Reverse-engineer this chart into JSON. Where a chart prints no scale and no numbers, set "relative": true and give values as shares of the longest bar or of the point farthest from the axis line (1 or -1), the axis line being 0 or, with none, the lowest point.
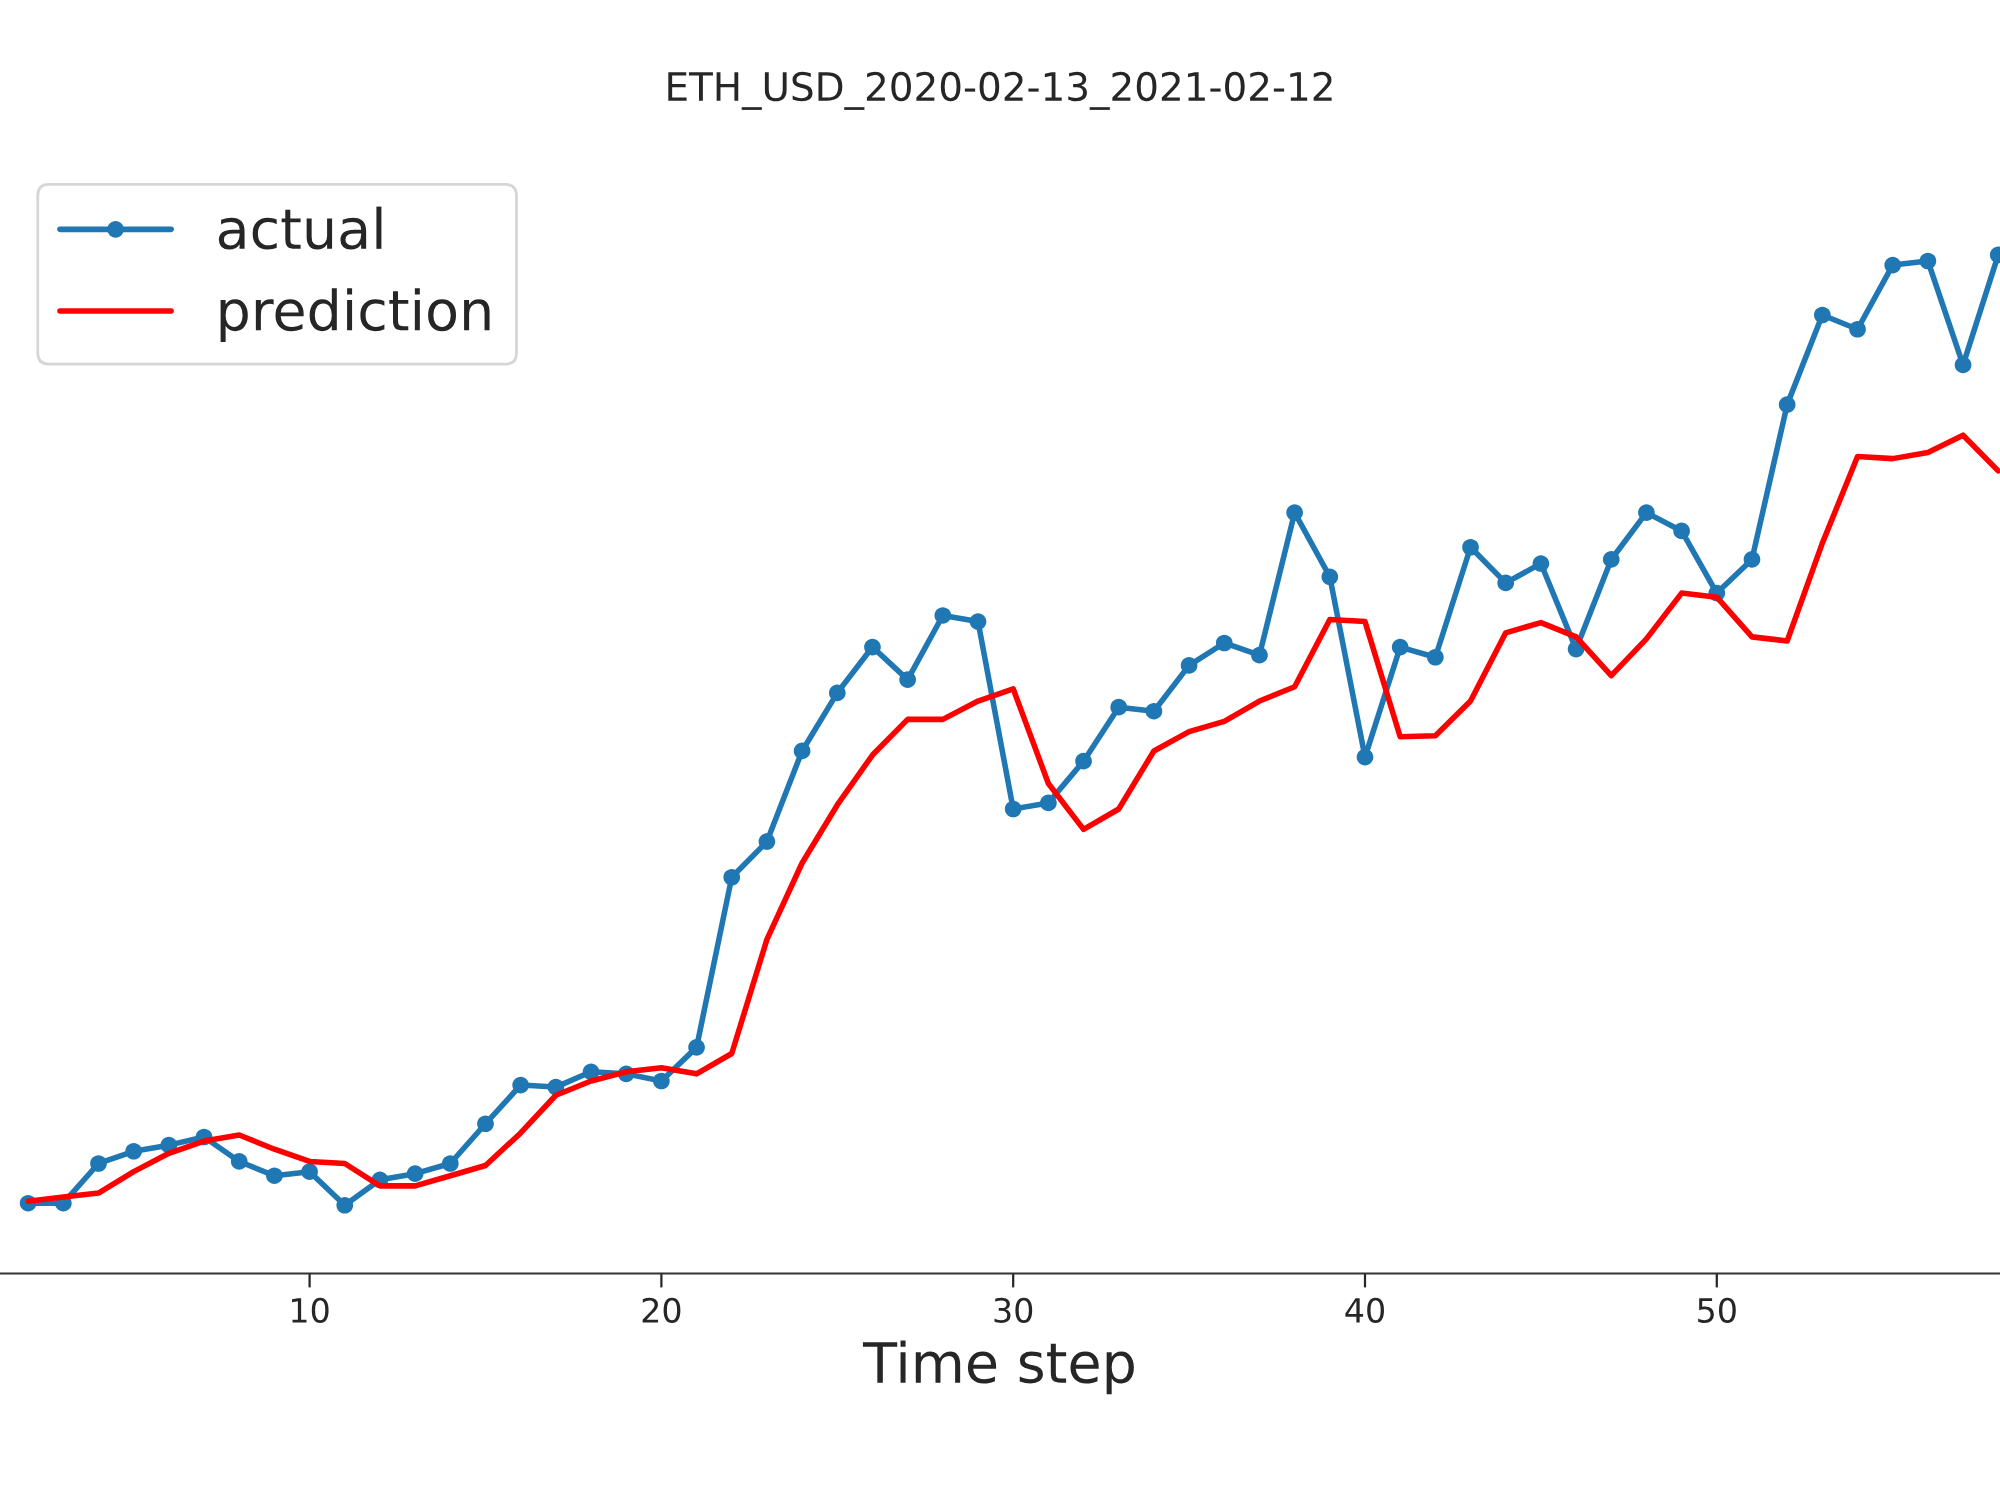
{
  "chart_data": {
    "type": "line",
    "title": "ETH_USD_2020-02-13_2021-02-12",
    "xlabel": "Time step",
    "relative": true,
    "tick_labels": "x",
    "legend": "top left",
    "grid": false,
    "xlim": [
      1.2,
      58.05
    ],
    "xticks": [
      10,
      20,
      30,
      40,
      50
    ],
    "x": [
      2,
      3,
      4,
      5,
      6,
      7,
      8,
      9,
      10,
      11,
      12,
      13,
      14,
      15,
      16,
      17,
      18,
      19,
      20,
      21,
      22,
      23,
      24,
      25,
      26,
      27,
      28,
      29,
      30,
      31,
      32,
      33,
      34,
      35,
      36,
      37,
      38,
      39,
      40,
      41,
      42,
      43,
      44,
      45,
      46,
      47,
      48,
      49,
      50,
      51,
      52,
      53,
      54,
      55,
      56,
      57,
      58
    ],
    "series": [
      {
        "name": "actual",
        "color": "#1f77b4",
        "marker": "circle",
        "values": [
          0.069,
          0.069,
          0.108,
          0.12,
          0.126,
          0.134,
          0.11,
          0.096,
          0.1,
          0.067,
          0.092,
          0.098,
          0.108,
          0.147,
          0.185,
          0.183,
          0.198,
          0.196,
          0.189,
          0.222,
          0.389,
          0.424,
          0.513,
          0.57,
          0.615,
          0.583,
          0.646,
          0.64,
          0.456,
          0.462,
          0.503,
          0.556,
          0.552,
          0.597,
          0.619,
          0.607,
          0.747,
          0.684,
          0.507,
          0.615,
          0.605,
          0.713,
          0.678,
          0.697,
          0.613,
          0.701,
          0.747,
          0.729,
          0.668,
          0.701,
          0.853,
          0.941,
          0.927,
          0.99,
          0.994,
          0.892,
          1.0
        ]
      },
      {
        "name": "prediction",
        "color": "#ff0000",
        "marker": "none",
        "values": [
          0.071,
          0.075,
          0.079,
          0.1,
          0.118,
          0.13,
          0.136,
          0.122,
          0.11,
          0.108,
          0.086,
          0.086,
          0.096,
          0.106,
          0.138,
          0.175,
          0.189,
          0.198,
          0.202,
          0.196,
          0.216,
          0.328,
          0.403,
          0.46,
          0.509,
          0.544,
          0.544,
          0.562,
          0.574,
          0.481,
          0.436,
          0.456,
          0.513,
          0.532,
          0.542,
          0.562,
          0.576,
          0.642,
          0.64,
          0.527,
          0.528,
          0.562,
          0.629,
          0.639,
          0.625,
          0.587,
          0.623,
          0.668,
          0.664,
          0.625,
          0.621,
          0.717,
          0.802,
          0.8,
          0.806,
          0.823,
          0.788
        ]
      }
    ]
  }
}
